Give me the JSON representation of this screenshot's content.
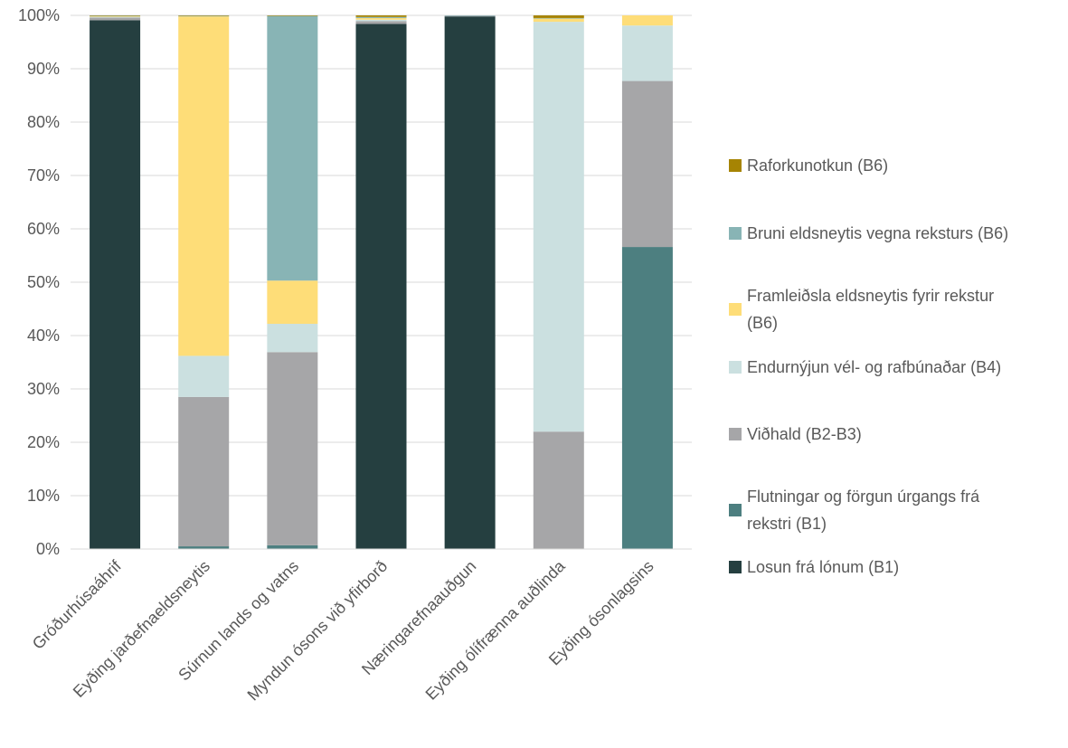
{
  "chart_data": {
    "type": "bar",
    "stacked": true,
    "percent": true,
    "ylim": [
      0,
      100
    ],
    "yticks": [
      "0%",
      "10%",
      "20%",
      "30%",
      "40%",
      "50%",
      "60%",
      "70%",
      "80%",
      "90%",
      "100%"
    ],
    "grid": true,
    "legend_position": "right",
    "categories": [
      "Gróðurhúsaáhrif",
      "Eyðing jarðefnaeldsneytis",
      "Súrnun lands og vatns",
      "Myndun ósons við yfirborð",
      "Næringarefnaauðgun",
      "Eyðing ólífrænna auðlinda",
      "Eyðing ósonlagsins"
    ],
    "series": [
      {
        "name": "Losun frá lónum (B1)",
        "color": "#253f40",
        "values": [
          99.1,
          0.0,
          0.0,
          98.4,
          99.8,
          0.0,
          0.0
        ]
      },
      {
        "name": "Flutningar og förgun úrgangs frá rekstri (B1)",
        "color": "#4d7f80",
        "values": [
          0.0,
          0.5,
          0.7,
          0.0,
          0.0,
          0.0,
          56.6
        ]
      },
      {
        "name": "Viðhald (B2-B3)",
        "color": "#a6a6a8",
        "values": [
          0.5,
          28.0,
          36.2,
          0.5,
          0.1,
          22.0,
          31.1
        ]
      },
      {
        "name": "Endurnýjun vél- og rafbúnaðar (B4)",
        "color": "#cbe0e0",
        "values": [
          0.1,
          7.7,
          5.3,
          0.3,
          0.0,
          76.8,
          10.4
        ]
      },
      {
        "name": "Framleiðsla eldsneytis fyrir rekstur (B6)",
        "color": "#fedd78",
        "values": [
          0.1,
          63.6,
          8.1,
          0.3,
          0.0,
          0.6,
          1.9
        ]
      },
      {
        "name": "Bruni eldsneytis vegna reksturs (B6)",
        "color": "#88b4b5",
        "values": [
          0.1,
          0.1,
          49.6,
          0.2,
          0.1,
          0.1,
          0.0
        ]
      },
      {
        "name": "Raforkunotkun (B6)",
        "color": "#a68403",
        "values": [
          0.1,
          0.1,
          0.1,
          0.3,
          0.0,
          0.5,
          0.0
        ]
      }
    ]
  }
}
